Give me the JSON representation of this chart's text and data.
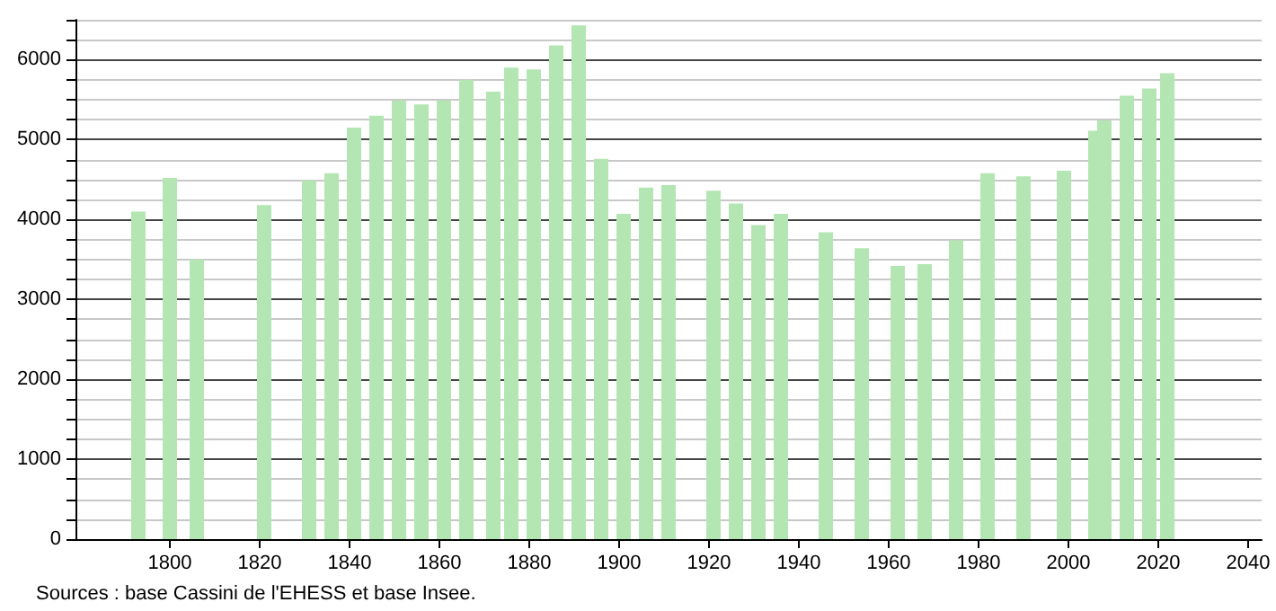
{
  "chart_data": {
    "type": "bar",
    "x": [
      1793,
      1800,
      1806,
      1821,
      1831,
      1836,
      1841,
      1846,
      1851,
      1856,
      1861,
      1866,
      1872,
      1876,
      1881,
      1886,
      1891,
      1896,
      1901,
      1906,
      1911,
      1921,
      1926,
      1931,
      1936,
      1946,
      1954,
      1962,
      1968,
      1975,
      1982,
      1990,
      1999,
      2006,
      2008,
      2013,
      2018,
      2022
    ],
    "values": [
      4100,
      4520,
      3500,
      4180,
      4490,
      4580,
      5150,
      5300,
      5490,
      5440,
      5490,
      5750,
      5600,
      5900,
      5880,
      6180,
      6430,
      4760,
      4070,
      4400,
      4430,
      4360,
      4200,
      3930,
      4070,
      3840,
      3640,
      3420,
      3440,
      3740,
      4580,
      4540,
      4610,
      5110,
      5240,
      5550,
      5640,
      5830
    ],
    "color": "#b3e6b3",
    "xlim": [
      1779,
      2043
    ],
    "xticks": [
      1800,
      1820,
      1840,
      1860,
      1880,
      1900,
      1920,
      1940,
      1960,
      1980,
      2000,
      2020,
      2040
    ],
    "ylim": [
      0,
      6500
    ],
    "yticks": [
      0,
      1000,
      2000,
      3000,
      4000,
      5000,
      6000
    ],
    "grid": "y",
    "annotations": [
      "Sources : base Cassini de l'EHESS et base Insee."
    ]
  }
}
